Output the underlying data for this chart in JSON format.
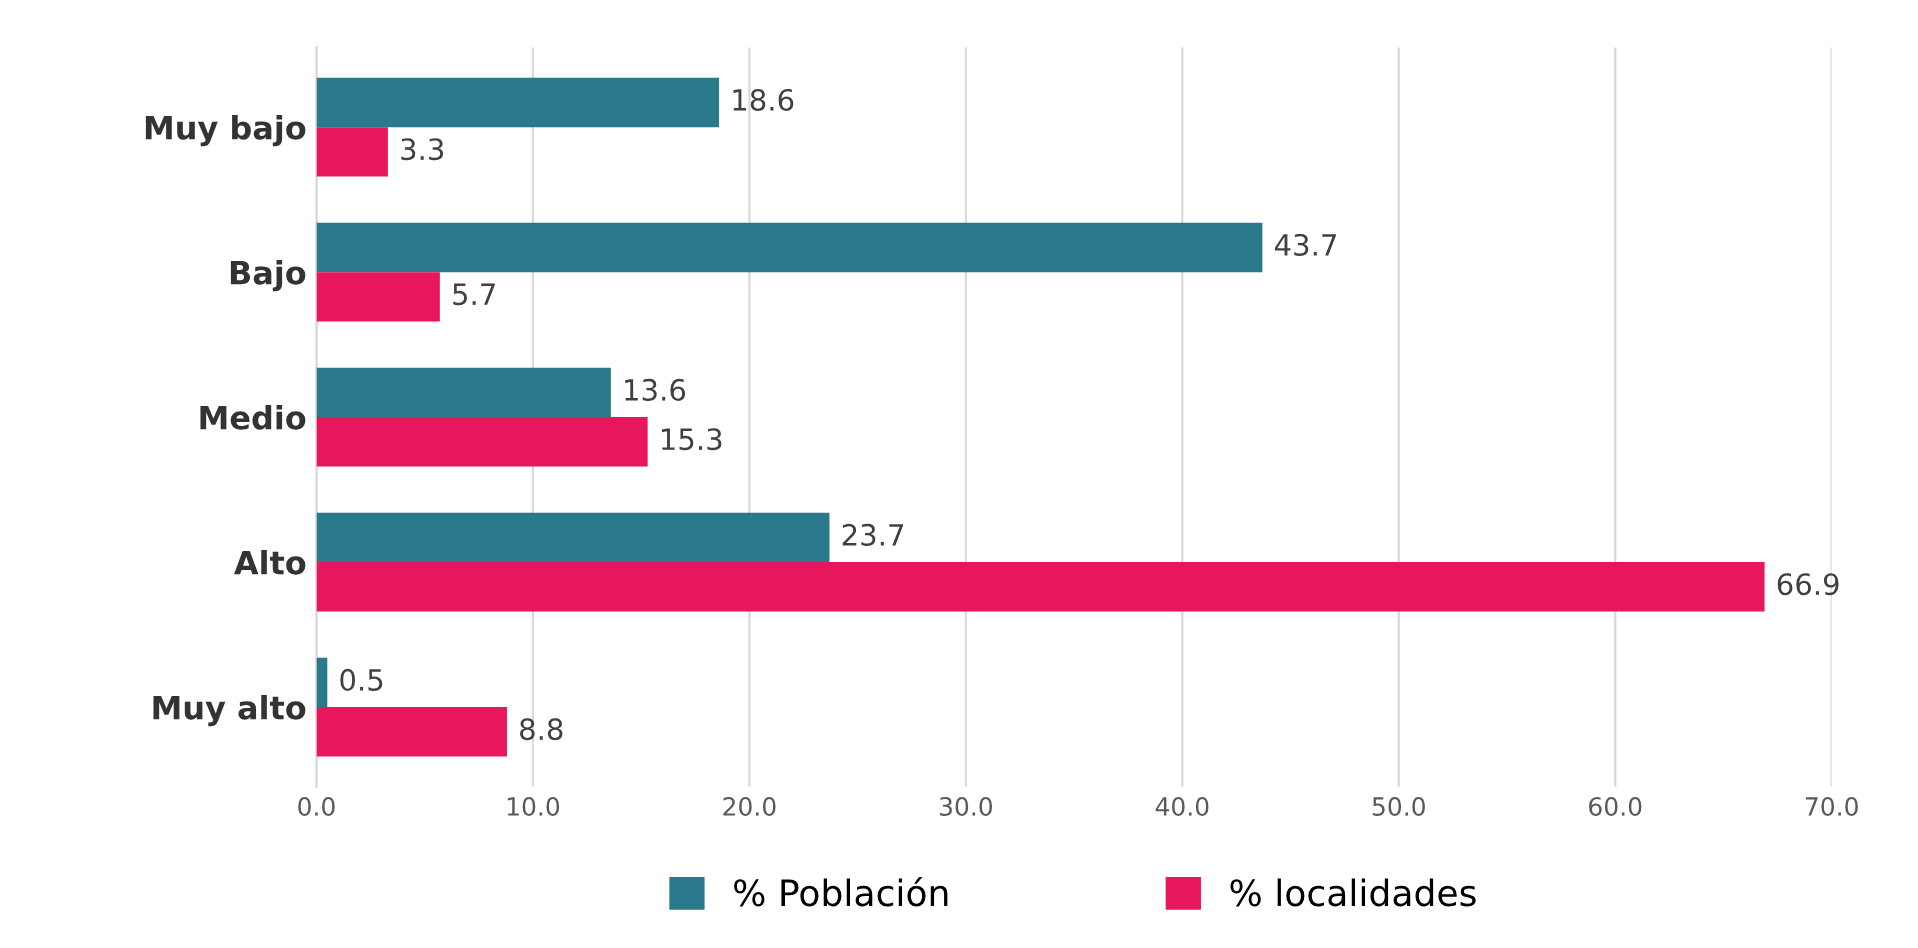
{
  "chart_data": {
    "type": "bar",
    "orientation": "horizontal",
    "categories": [
      "Muy bajo",
      "Bajo",
      "Medio",
      "Alto",
      "Muy alto"
    ],
    "series": [
      {
        "name": "% Población",
        "color": "#2b7a8c",
        "values": [
          18.6,
          43.7,
          13.6,
          23.7,
          0.5
        ]
      },
      {
        "name": "% localidades",
        "color": "#e8175d",
        "values": [
          3.3,
          5.7,
          15.3,
          66.9,
          8.8
        ]
      }
    ],
    "xlim": [
      0,
      70
    ],
    "xticks": [
      {
        "value": 0,
        "label": "0.0"
      },
      {
        "value": 10,
        "label": "10.0"
      },
      {
        "value": 20,
        "label": "20.0"
      },
      {
        "value": 30,
        "label": "30.0"
      },
      {
        "value": 40,
        "label": "40.0"
      },
      {
        "value": 50,
        "label": "50.0"
      },
      {
        "value": 60,
        "label": "60.0"
      },
      {
        "value": 70,
        "label": "70.0"
      }
    ],
    "grid": "x",
    "legend": "bottom",
    "data_labels": true
  }
}
